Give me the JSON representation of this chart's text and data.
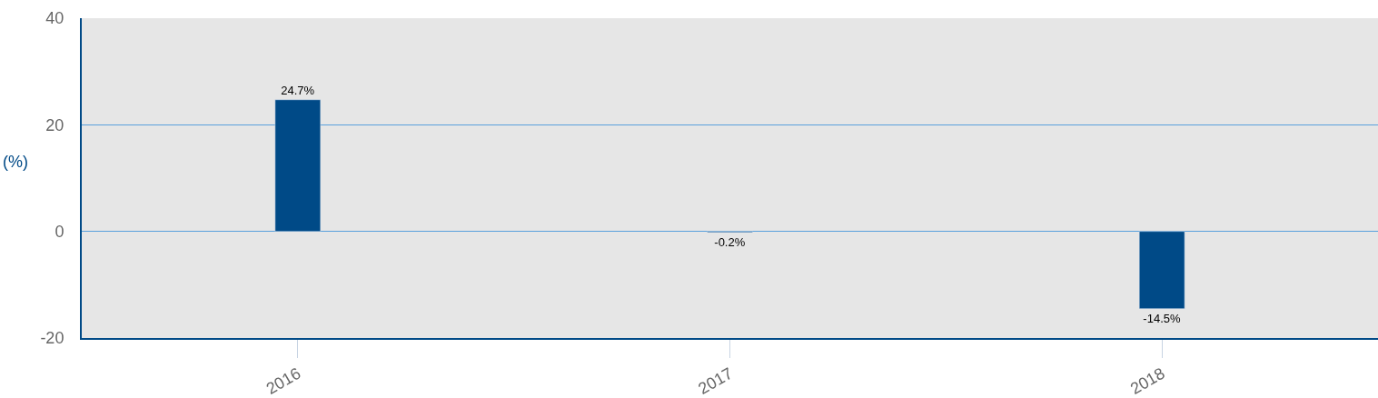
{
  "chart_data": {
    "type": "bar",
    "ylabel": "(%)",
    "categories": [
      "2016",
      "2017",
      "2018"
    ],
    "values": [
      24.7,
      -0.2,
      -14.5
    ],
    "value_labels": [
      "24.7%",
      "-0.2%",
      "-14.5%"
    ],
    "color": "#004a87",
    "ylim": [
      -20,
      40
    ],
    "yticks": [
      -20,
      0,
      20,
      40
    ],
    "grid": "y",
    "legend": false
  }
}
